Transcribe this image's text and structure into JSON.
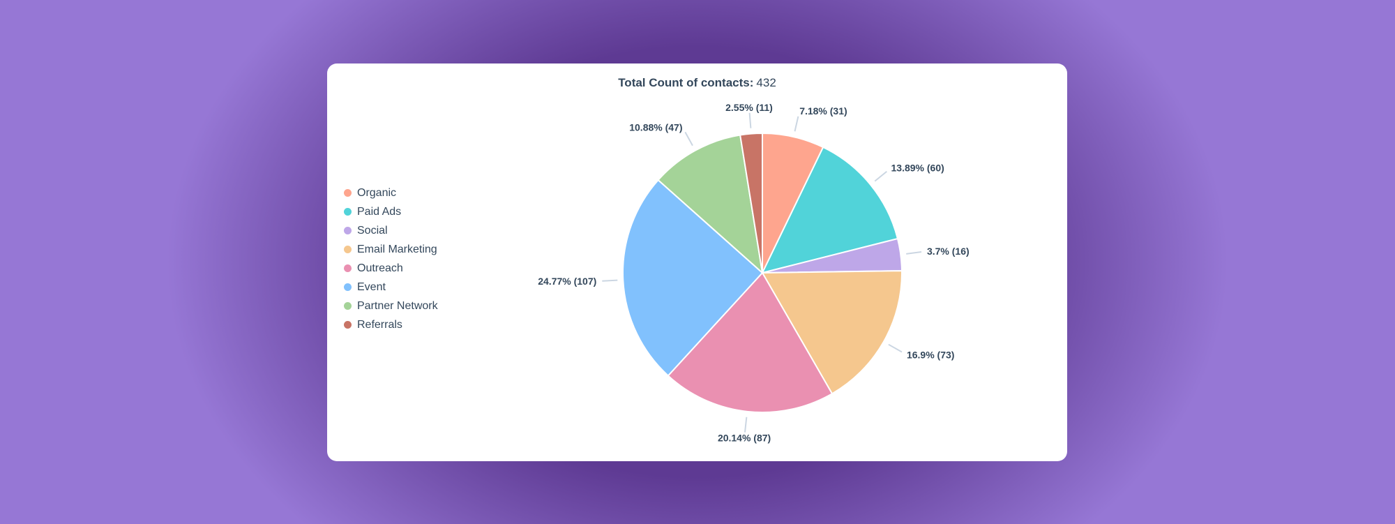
{
  "chart_data": {
    "type": "pie",
    "title_label": "Total Count of contacts:",
    "title_value": "432",
    "legend_position": "left",
    "slices": [
      {
        "name": "Organic",
        "value": 31,
        "percent_label": "7.18% (31)",
        "color": "#fea58e"
      },
      {
        "name": "Paid Ads",
        "value": 60,
        "percent_label": "13.89% (60)",
        "color": "#51d3d9"
      },
      {
        "name": "Social",
        "value": 16,
        "percent_label": "3.7% (16)",
        "color": "#bea7e8"
      },
      {
        "name": "Email Marketing",
        "value": 73,
        "percent_label": "16.9% (73)",
        "color": "#f5c78e"
      },
      {
        "name": "Outreach",
        "value": 87,
        "percent_label": "20.14% (87)",
        "color": "#ea90b1"
      },
      {
        "name": "Event",
        "value": 107,
        "percent_label": "24.77% (107)",
        "color": "#81c1fd"
      },
      {
        "name": "Partner Network",
        "value": 47,
        "percent_label": "10.88% (47)",
        "color": "#a4d398"
      },
      {
        "name": "Referrals",
        "value": 11,
        "percent_label": "2.55% (11)",
        "color": "#c87466"
      }
    ]
  }
}
